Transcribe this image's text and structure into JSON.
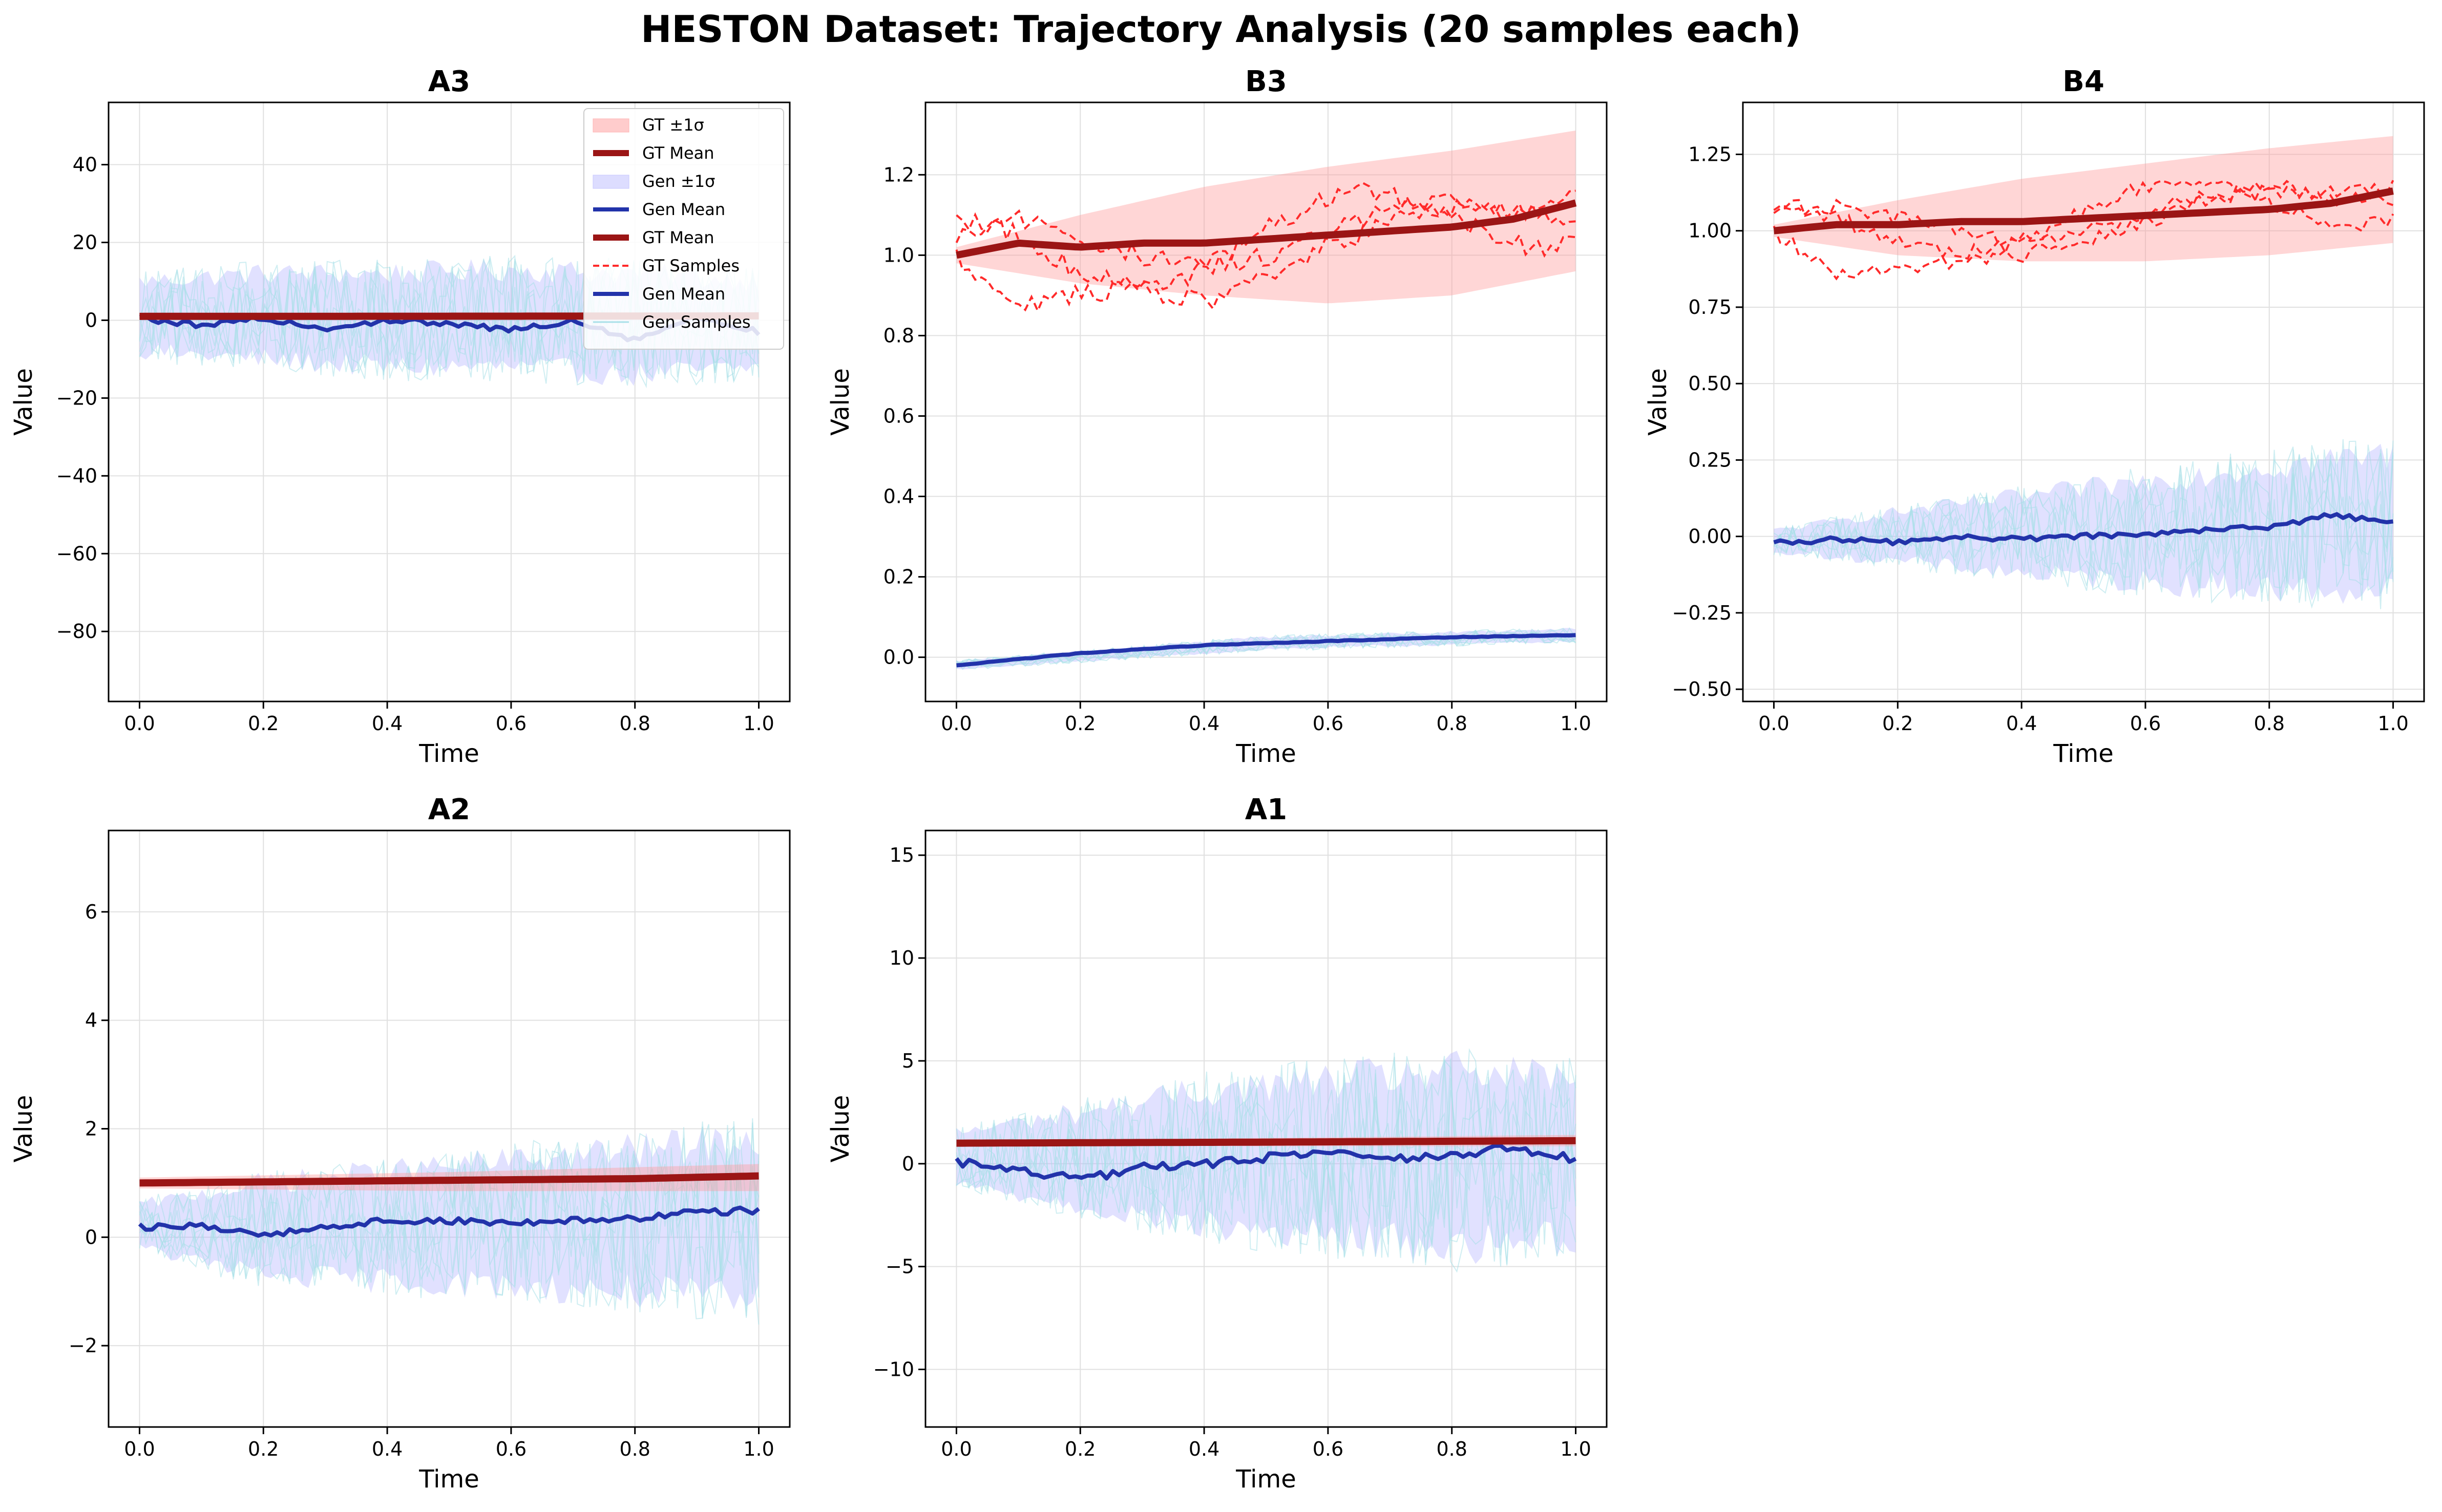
{
  "figure": {
    "title": "HESTON Dataset: Trajectory Analysis (20 samples each)"
  },
  "colors": {
    "gt_band": "#ff9999",
    "gt_mean": "#9b1515",
    "gt_sample": "#ff2a2a",
    "gen_band": "#aaaaff",
    "gen_mean": "#2233aa",
    "gen_sample": "#a8e0e8",
    "grid": "#e0e0e0"
  },
  "legend": {
    "entries": [
      {
        "label": "GT ±1σ",
        "kind": "band-gt"
      },
      {
        "label": "GT Mean",
        "kind": "gt-mean"
      },
      {
        "label": "Gen ±1σ",
        "kind": "band-gen"
      },
      {
        "label": "Gen Mean",
        "kind": "gen-mean"
      },
      {
        "label": "GT Mean",
        "kind": "gt-mean"
      },
      {
        "label": "GT Samples",
        "kind": "gt-sample"
      },
      {
        "label": "Gen Mean",
        "kind": "gen-mean"
      },
      {
        "label": "Gen Samples",
        "kind": "gen-sample"
      }
    ]
  },
  "chart_data": [
    {
      "type": "line",
      "title": "A3",
      "xlabel": "Time",
      "ylabel": "Value",
      "xlim": [
        -0.05,
        1.05
      ],
      "ylim": [
        -98,
        56
      ],
      "xticks": [
        0.0,
        0.2,
        0.4,
        0.6,
        0.8,
        1.0
      ],
      "xtick_labels": [
        "0.0",
        "0.2",
        "0.4",
        "0.6",
        "0.8",
        "1.0"
      ],
      "yticks": [
        -80,
        -60,
        -40,
        -20,
        0,
        20,
        40
      ],
      "ytick_labels": [
        "−80",
        "−60",
        "−40",
        "−20",
        "0",
        "20",
        "40"
      ],
      "legend": "top-right",
      "series": [
        {
          "name": "GT Mean",
          "x": [
            0,
            0.2,
            0.4,
            0.6,
            0.8,
            1.0
          ],
          "values": [
            1.0,
            1.02,
            1.03,
            1.05,
            1.08,
            1.12
          ]
        },
        {
          "name": "GT ±1σ",
          "x": [
            0,
            0.5,
            1.0
          ],
          "lower": [
            0.9,
            0.85,
            0.8
          ],
          "upper": [
            1.1,
            1.25,
            1.4
          ]
        },
        {
          "name": "Gen Mean",
          "x": [
            0,
            0.1,
            0.2,
            0.3,
            0.4,
            0.5,
            0.6,
            0.7,
            0.8,
            0.9,
            1.0
          ],
          "values": [
            0.5,
            -1.5,
            0.5,
            -2.0,
            0.0,
            -1.0,
            -2.5,
            0.0,
            -5.0,
            1.0,
            -3.0
          ]
        },
        {
          "name": "Gen ±1σ",
          "x": [
            0,
            0.2,
            0.4,
            0.6,
            0.8,
            1.0
          ],
          "lower": [
            -8,
            -10,
            -12,
            -12,
            -14,
            -12
          ],
          "upper": [
            10,
            12,
            12,
            13,
            12,
            10
          ]
        }
      ]
    },
    {
      "type": "line",
      "title": "B3",
      "xlabel": "Time",
      "ylabel": "Value",
      "xlim": [
        -0.05,
        1.05
      ],
      "ylim": [
        -0.11,
        1.38
      ],
      "xticks": [
        0.0,
        0.2,
        0.4,
        0.6,
        0.8,
        1.0
      ],
      "xtick_labels": [
        "0.0",
        "0.2",
        "0.4",
        "0.6",
        "0.8",
        "1.0"
      ],
      "yticks": [
        0.0,
        0.2,
        0.4,
        0.6,
        0.8,
        1.0,
        1.2
      ],
      "ytick_labels": [
        "0.0",
        "0.2",
        "0.4",
        "0.6",
        "0.8",
        "1.0",
        "1.2"
      ],
      "series": [
        {
          "name": "GT Mean",
          "x": [
            0,
            0.1,
            0.2,
            0.3,
            0.4,
            0.5,
            0.6,
            0.7,
            0.8,
            0.9,
            1.0
          ],
          "values": [
            1.0,
            1.03,
            1.02,
            1.03,
            1.03,
            1.04,
            1.05,
            1.06,
            1.07,
            1.09,
            1.13
          ]
        },
        {
          "name": "GT ±1σ",
          "x": [
            0,
            0.2,
            0.4,
            0.6,
            0.8,
            1.0
          ],
          "lower": [
            0.98,
            0.93,
            0.9,
            0.88,
            0.9,
            0.96
          ],
          "upper": [
            1.02,
            1.1,
            1.17,
            1.22,
            1.26,
            1.31
          ]
        },
        {
          "name": "GT Samples",
          "x": [
            0,
            0.1,
            0.2,
            0.3,
            0.4,
            0.5,
            0.6,
            0.7,
            0.8,
            0.9,
            1.0
          ],
          "values": [
            1.0,
            0.88,
            0.9,
            0.92,
            0.88,
            0.95,
            1.02,
            1.08,
            1.12,
            1.1,
            1.14
          ]
        },
        {
          "name": "Gen Mean",
          "x": [
            0,
            0.2,
            0.4,
            0.6,
            0.8,
            1.0
          ],
          "values": [
            -0.02,
            0.01,
            0.03,
            0.04,
            0.05,
            0.055
          ]
        },
        {
          "name": "Gen ±1σ",
          "x": [
            0,
            0.5,
            1.0
          ],
          "lower": [
            -0.03,
            0.02,
            0.04
          ],
          "upper": [
            -0.01,
            0.05,
            0.07
          ]
        }
      ]
    },
    {
      "type": "line",
      "title": "B4",
      "xlabel": "Time",
      "ylabel": "Value",
      "xlim": [
        -0.05,
        1.05
      ],
      "ylim": [
        -0.54,
        1.42
      ],
      "xticks": [
        0.0,
        0.2,
        0.4,
        0.6,
        0.8,
        1.0
      ],
      "xtick_labels": [
        "0.0",
        "0.2",
        "0.4",
        "0.6",
        "0.8",
        "1.0"
      ],
      "yticks": [
        -0.5,
        -0.25,
        0.0,
        0.25,
        0.5,
        0.75,
        1.0,
        1.25
      ],
      "ytick_labels": [
        "−0.50",
        "−0.25",
        "0.00",
        "0.25",
        "0.50",
        "0.75",
        "1.00",
        "1.25"
      ],
      "series": [
        {
          "name": "GT Mean",
          "x": [
            0,
            0.1,
            0.2,
            0.3,
            0.4,
            0.5,
            0.6,
            0.7,
            0.8,
            0.9,
            1.0
          ],
          "values": [
            1.0,
            1.02,
            1.02,
            1.03,
            1.03,
            1.04,
            1.05,
            1.06,
            1.07,
            1.09,
            1.13
          ]
        },
        {
          "name": "GT ±1σ",
          "x": [
            0,
            0.2,
            0.4,
            0.6,
            0.8,
            1.0
          ],
          "lower": [
            0.98,
            0.92,
            0.9,
            0.9,
            0.92,
            0.96
          ],
          "upper": [
            1.02,
            1.1,
            1.17,
            1.22,
            1.27,
            1.31
          ]
        },
        {
          "name": "GT Samples",
          "x": [
            0,
            0.1,
            0.2,
            0.3,
            0.4,
            0.5,
            0.6,
            0.7,
            0.8,
            0.9,
            1.0
          ],
          "values": [
            1.0,
            0.86,
            0.88,
            0.9,
            0.92,
            0.97,
            1.03,
            1.1,
            1.15,
            1.12,
            1.15
          ]
        },
        {
          "name": "Gen Mean",
          "x": [
            0,
            0.1,
            0.2,
            0.3,
            0.4,
            0.5,
            0.6,
            0.7,
            0.8,
            0.9,
            1.0
          ],
          "values": [
            -0.02,
            -0.01,
            -0.02,
            0.0,
            -0.01,
            0.0,
            0.01,
            0.02,
            0.03,
            0.07,
            0.05
          ]
        },
        {
          "name": "Gen ±1σ",
          "x": [
            0,
            0.2,
            0.4,
            0.6,
            0.8,
            1.0
          ],
          "lower": [
            -0.05,
            -0.08,
            -0.12,
            -0.15,
            -0.17,
            -0.18
          ],
          "upper": [
            0.02,
            0.08,
            0.13,
            0.18,
            0.23,
            0.27
          ]
        }
      ]
    },
    {
      "type": "line",
      "title": "A2",
      "xlabel": "Time",
      "ylabel": "Value",
      "xlim": [
        -0.05,
        1.05
      ],
      "ylim": [
        -3.5,
        7.5
      ],
      "xticks": [
        0.0,
        0.2,
        0.4,
        0.6,
        0.8,
        1.0
      ],
      "xtick_labels": [
        "0.0",
        "0.2",
        "0.4",
        "0.6",
        "0.8",
        "1.0"
      ],
      "yticks": [
        -2,
        0,
        2,
        4,
        6
      ],
      "ytick_labels": [
        "−2",
        "0",
        "2",
        "4",
        "6"
      ],
      "series": [
        {
          "name": "GT Mean",
          "x": [
            0,
            0.2,
            0.4,
            0.6,
            0.8,
            1.0
          ],
          "values": [
            1.0,
            1.02,
            1.04,
            1.06,
            1.08,
            1.13
          ]
        },
        {
          "name": "GT ±1σ",
          "x": [
            0,
            0.5,
            1.0
          ],
          "lower": [
            0.9,
            0.85,
            0.85
          ],
          "upper": [
            1.1,
            1.2,
            1.35
          ]
        },
        {
          "name": "Gen Mean",
          "x": [
            0,
            0.1,
            0.2,
            0.3,
            0.4,
            0.5,
            0.6,
            0.7,
            0.8,
            0.9,
            1.0
          ],
          "values": [
            0.2,
            0.2,
            0.05,
            0.2,
            0.3,
            0.3,
            0.25,
            0.3,
            0.35,
            0.45,
            0.5
          ]
        },
        {
          "name": "Gen ±1σ",
          "x": [
            0,
            0.2,
            0.4,
            0.6,
            0.8,
            1.0
          ],
          "lower": [
            -0.2,
            -0.7,
            -0.8,
            -0.9,
            -1.0,
            -1.2
          ],
          "upper": [
            0.6,
            1.0,
            1.2,
            1.4,
            1.6,
            1.8
          ]
        }
      ]
    },
    {
      "type": "line",
      "title": "A1",
      "xlabel": "Time",
      "ylabel": "Value",
      "xlim": [
        -0.05,
        1.05
      ],
      "ylim": [
        -12.8,
        16.2
      ],
      "xticks": [
        0.0,
        0.2,
        0.4,
        0.6,
        0.8,
        1.0
      ],
      "xtick_labels": [
        "0.0",
        "0.2",
        "0.4",
        "0.6",
        "0.8",
        "1.0"
      ],
      "yticks": [
        -10,
        -5,
        0,
        5,
        10,
        15
      ],
      "ytick_labels": [
        "−10",
        "−5",
        "0",
        "5",
        "10",
        "15"
      ],
      "series": [
        {
          "name": "GT Mean",
          "x": [
            0,
            0.5,
            1.0
          ],
          "values": [
            1.0,
            1.05,
            1.12
          ]
        },
        {
          "name": "GT ±1σ",
          "x": [
            0,
            0.5,
            1.0
          ],
          "lower": [
            0.9,
            0.85,
            0.85
          ],
          "upper": [
            1.1,
            1.25,
            1.4
          ]
        },
        {
          "name": "Gen Mean",
          "x": [
            0,
            0.1,
            0.2,
            0.3,
            0.4,
            0.5,
            0.6,
            0.7,
            0.8,
            0.9,
            1.0
          ],
          "values": [
            0.1,
            -0.3,
            -0.8,
            -0.2,
            0.0,
            0.3,
            0.6,
            0.2,
            0.4,
            0.8,
            0.2
          ]
        },
        {
          "name": "Gen ±1σ",
          "x": [
            0,
            0.2,
            0.4,
            0.6,
            0.8,
            1.0
          ],
          "lower": [
            -1.0,
            -2.0,
            -3.0,
            -3.5,
            -4.0,
            -3.5
          ],
          "upper": [
            1.5,
            2.5,
            3.5,
            4.0,
            4.5,
            4.0
          ]
        }
      ]
    }
  ]
}
